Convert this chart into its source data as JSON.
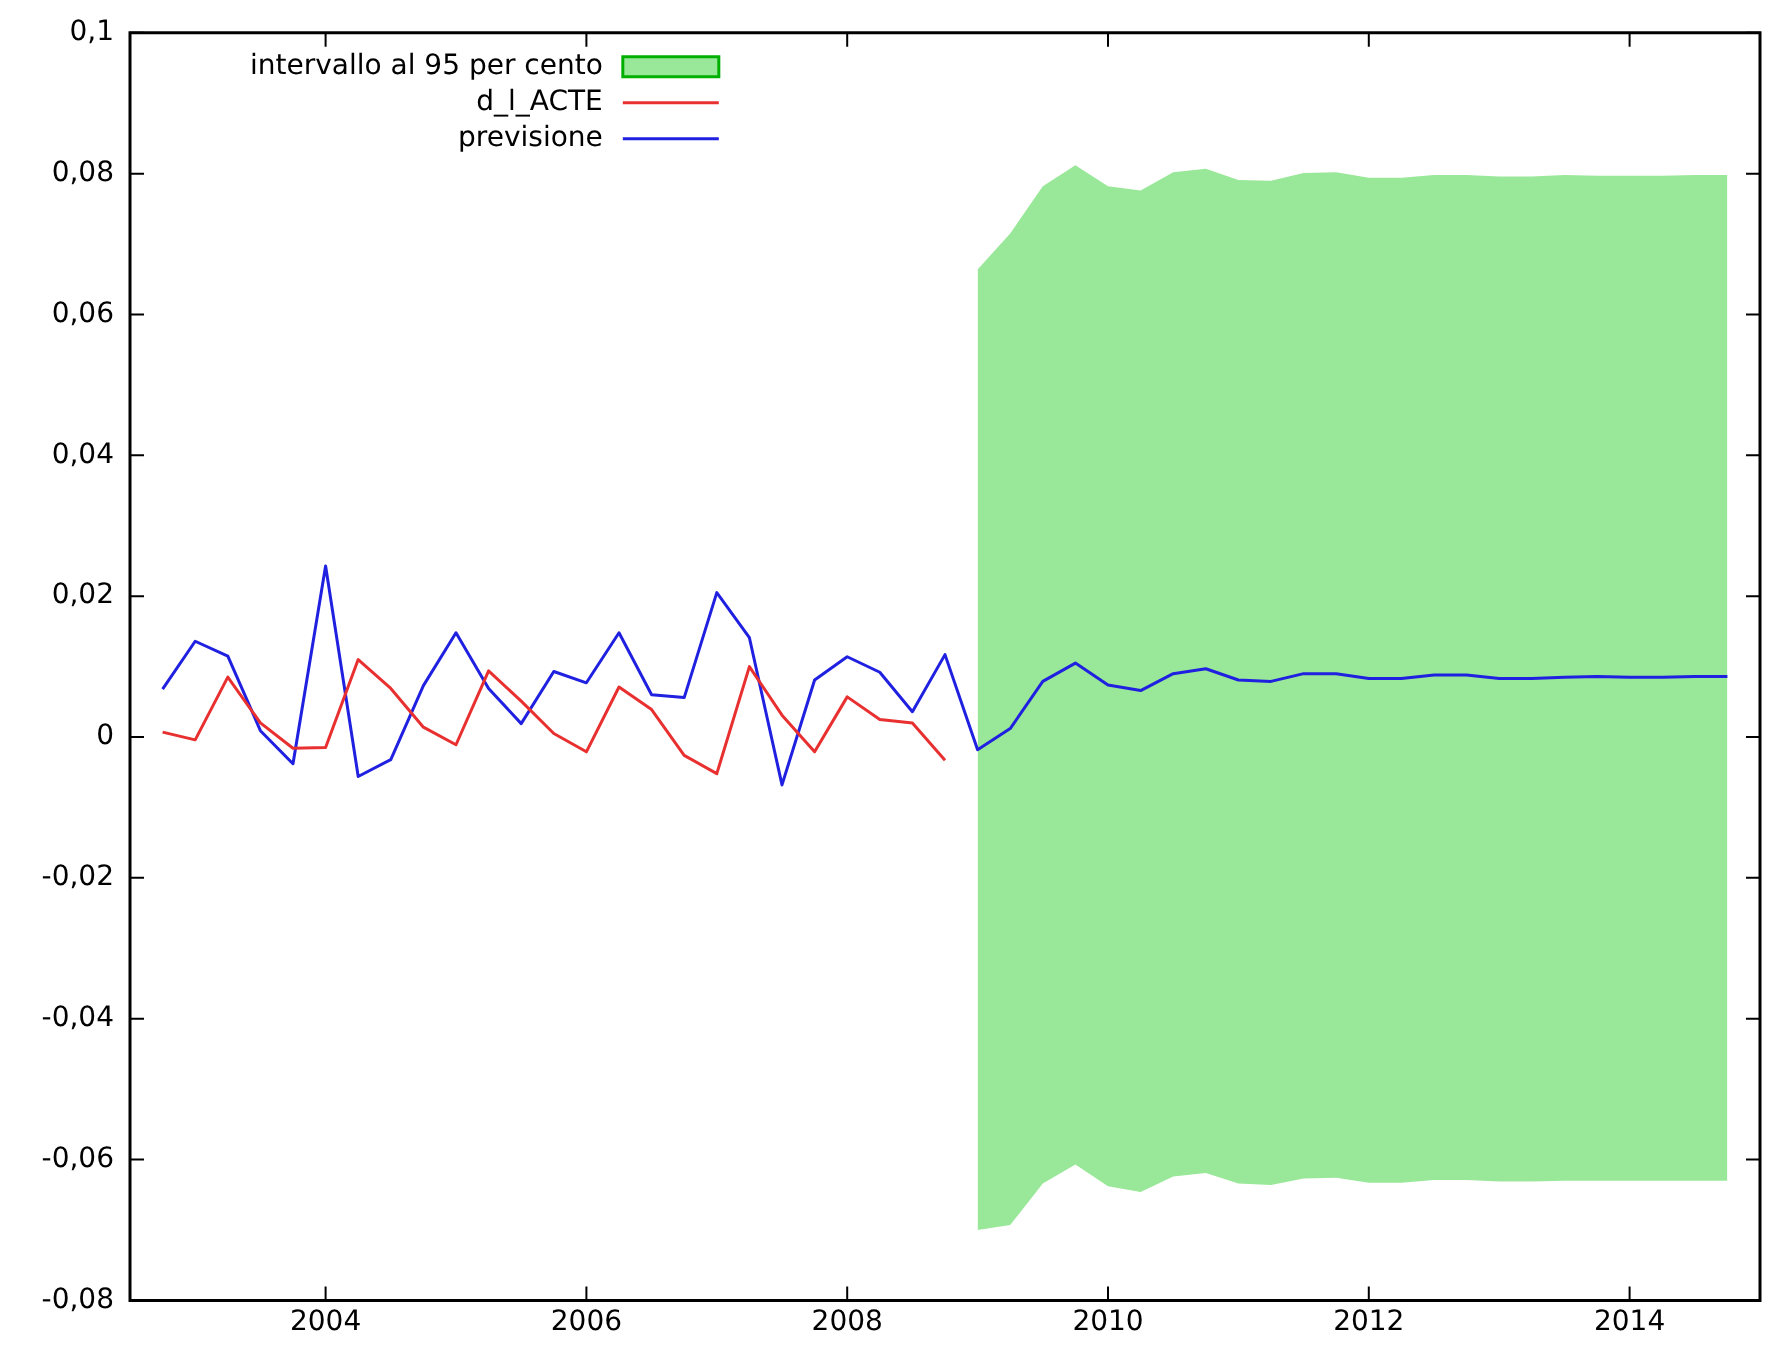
{
  "chart_data": {
    "type": "line",
    "xlim": [
      2002.5,
      2015
    ],
    "xticks": [
      2004,
      2006,
      2008,
      2010,
      2012,
      2014
    ],
    "ylim": [
      -0.08,
      0.1
    ],
    "yticks": [
      {
        "value": -0.08,
        "label": "-0,08"
      },
      {
        "value": -0.06,
        "label": "-0,06"
      },
      {
        "value": -0.04,
        "label": "-0,04"
      },
      {
        "value": -0.02,
        "label": "-0,02"
      },
      0,
      {
        "value": 0.02,
        "label": "0,02"
      },
      {
        "value": 0.04,
        "label": "0,04"
      },
      {
        "value": 0.06,
        "label": "0,06"
      },
      {
        "value": 0.08,
        "label": "0,08"
      },
      {
        "value": 0.1,
        "label": "0,1"
      }
    ],
    "grid": false,
    "legend": "top left",
    "series": [
      {
        "name": "intervallo al 95 per cento",
        "type": "area",
        "color": "#99e899",
        "x": [
          2009,
          2009.25,
          2009.5,
          2009.75,
          2010,
          2010.25,
          2010.5,
          2010.75,
          2011,
          2011.25,
          2011.5,
          2011.75,
          2012,
          2012.25,
          2012.5,
          2012.75,
          2013,
          2013.25,
          2013.5,
          2013.75,
          2014,
          2014.25,
          2014.5,
          2014.75
        ],
        "values": [
          null,
          null,
          null,
          null,
          null,
          null,
          null,
          null,
          null,
          null,
          null,
          null,
          null,
          null,
          null,
          null,
          null,
          null,
          null,
          null,
          null,
          null,
          null,
          null
        ],
        "lower": [
          -0.07,
          -0.0693,
          -0.0634,
          -0.0607,
          -0.0638,
          -0.0646,
          -0.0624,
          -0.0619,
          -0.0634,
          -0.0636,
          -0.0627,
          -0.0626,
          -0.0633,
          -0.0633,
          -0.0629,
          -0.0629,
          -0.0631,
          -0.0631,
          -0.063,
          -0.063,
          -0.063,
          -0.063,
          -0.063,
          -0.063
        ],
        "upper": [
          0.0664,
          0.0715,
          0.0782,
          0.0812,
          0.0782,
          0.0776,
          0.0802,
          0.0807,
          0.0791,
          0.079,
          0.0801,
          0.0802,
          0.0794,
          0.0794,
          0.0798,
          0.0798,
          0.0796,
          0.0796,
          0.0798,
          0.0797,
          0.0797,
          0.0797,
          0.0798,
          0.0798
        ]
      },
      {
        "name": "d_l_ACTE",
        "color": "#e83030",
        "x": [
          2002.75,
          2003,
          2003.25,
          2003.5,
          2003.75,
          2004,
          2004.25,
          2004.5,
          2004.75,
          2005,
          2005.25,
          2005.5,
          2005.75,
          2006,
          2006.25,
          2006.5,
          2006.75,
          2007,
          2007.25,
          2007.5,
          2007.75,
          2008,
          2008.25,
          2008.5,
          2008.75
        ],
        "values": [
          0.0007,
          -0.0004,
          0.0085,
          0.002,
          -0.0016,
          -0.0015,
          0.011,
          0.0069,
          0.0014,
          -0.0011,
          0.0094,
          0.0051,
          0.0005,
          -0.0021,
          0.0071,
          0.0039,
          -0.0026,
          -0.0052,
          0.01,
          0.0031,
          -0.0021,
          0.0057,
          0.0025,
          0.002,
          -0.0033
        ]
      },
      {
        "name": "previsione",
        "color": "#2020e0",
        "x": [
          2002.75,
          2003,
          2003.25,
          2003.5,
          2003.75,
          2004,
          2004.25,
          2004.5,
          2004.75,
          2005,
          2005.25,
          2005.5,
          2005.75,
          2006,
          2006.25,
          2006.5,
          2006.75,
          2007,
          2007.25,
          2007.5,
          2007.75,
          2008,
          2008.25,
          2008.5,
          2008.75,
          2009,
          2009.25,
          2009.5,
          2009.75,
          2010,
          2010.25,
          2010.5,
          2010.75,
          2011,
          2011.25,
          2011.5,
          2011.75,
          2012,
          2012.25,
          2012.5,
          2012.75,
          2013,
          2013.25,
          2013.5,
          2013.75,
          2014,
          2014.25,
          2014.5,
          2014.75
        ],
        "values": [
          0.0068,
          0.0136,
          0.0115,
          0.0009,
          -0.0038,
          0.0243,
          -0.0056,
          -0.0032,
          0.0073,
          0.0148,
          0.0069,
          0.0019,
          0.0093,
          0.0077,
          0.0148,
          0.006,
          0.0056,
          0.0205,
          0.0141,
          -0.0068,
          0.0081,
          0.0114,
          0.0092,
          0.0036,
          0.0117,
          -0.0018,
          0.0012,
          0.0079,
          0.0105,
          0.0074,
          0.0066,
          0.009,
          0.0097,
          0.0081,
          0.0079,
          0.009,
          0.009,
          0.0083,
          0.0083,
          0.0088,
          0.0088,
          0.0083,
          0.0083,
          0.0085,
          0.0086,
          0.0085,
          0.0085,
          0.0086,
          0.0086
        ]
      }
    ]
  }
}
